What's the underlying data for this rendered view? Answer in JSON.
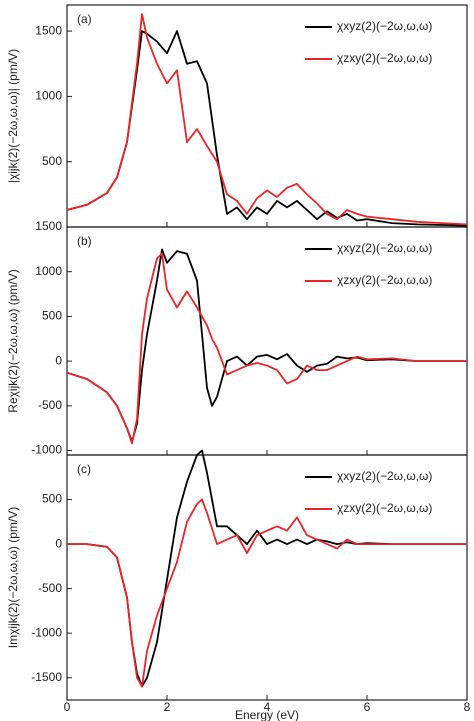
{
  "chart_data": [
    {
      "type": "line",
      "label": "(a)",
      "y_label": "|χijk(2)(−2ω,ω,ω)| (pm/V)",
      "x": [
        0,
        0.4,
        0.8,
        1.0,
        1.2,
        1.4,
        1.5,
        1.6,
        1.8,
        2.0,
        2.2,
        2.4,
        2.6,
        2.8,
        3.0,
        3.2,
        3.4,
        3.6,
        3.8,
        4.0,
        4.2,
        4.4,
        4.6,
        4.8,
        5.0,
        5.2,
        5.4,
        5.6,
        5.8,
        6.0,
        6.5,
        7.0,
        7.5,
        8.0
      ],
      "series": [
        {
          "name": "χxyz(2)(−2ω,ω,ω)",
          "color": "#000000",
          "values": [
            130,
            170,
            260,
            380,
            650,
            1200,
            1500,
            1480,
            1420,
            1330,
            1500,
            1250,
            1270,
            1100,
            550,
            100,
            150,
            60,
            150,
            100,
            200,
            150,
            200,
            130,
            60,
            120,
            70,
            100,
            50,
            60,
            30,
            20,
            15,
            10
          ]
        },
        {
          "name": "χzxy(2)(−2ω,ω,ω)",
          "color": "#e8262a",
          "values": [
            130,
            170,
            260,
            380,
            650,
            1250,
            1630,
            1450,
            1250,
            1100,
            1200,
            650,
            750,
            620,
            500,
            250,
            200,
            100,
            220,
            280,
            230,
            300,
            330,
            250,
            180,
            100,
            60,
            130,
            100,
            80,
            60,
            40,
            30,
            20
          ]
        }
      ],
      "xlim": [
        0,
        8
      ],
      "xticks": [
        0,
        2,
        4,
        6,
        8
      ],
      "ylim": [
        0,
        1700
      ],
      "yticks": [
        500,
        1000,
        1500
      ]
    },
    {
      "type": "line",
      "label": "(b)",
      "y_label": "Reχijk(2)(−2ω,ω,ω) (pm/V)",
      "x": [
        0,
        0.4,
        0.8,
        1.0,
        1.2,
        1.3,
        1.4,
        1.5,
        1.6,
        1.8,
        1.9,
        2.0,
        2.2,
        2.4,
        2.6,
        2.8,
        2.9,
        3.0,
        3.2,
        3.4,
        3.6,
        3.8,
        4.0,
        4.2,
        4.4,
        4.6,
        4.8,
        5.0,
        5.2,
        5.4,
        5.6,
        5.8,
        6.0,
        6.5,
        7.0,
        8.0
      ],
      "series": [
        {
          "name": "χxyz(2)(−2ω,ω,ω)",
          "color": "#000000",
          "values": [
            -130,
            -200,
            -350,
            -500,
            -750,
            -900,
            -700,
            -100,
            300,
            900,
            1250,
            1100,
            1230,
            1200,
            900,
            -300,
            -500,
            -400,
            0,
            50,
            -50,
            50,
            70,
            20,
            80,
            -50,
            -120,
            -50,
            -30,
            50,
            30,
            40,
            10,
            20,
            0,
            0
          ]
        },
        {
          "name": "χzxy(2)(−2ω,ω,ω)",
          "color": "#e8262a",
          "values": [
            -130,
            -200,
            -350,
            -500,
            -750,
            -920,
            -650,
            300,
            700,
            1150,
            1200,
            800,
            600,
            780,
            600,
            400,
            250,
            150,
            -150,
            -100,
            -50,
            -20,
            -50,
            -100,
            -250,
            -200,
            -50,
            -100,
            -100,
            -50,
            0,
            50,
            20,
            30,
            0,
            0
          ]
        }
      ],
      "xlim": [
        0,
        8
      ],
      "xticks": [
        0,
        2,
        4,
        6,
        8
      ],
      "ylim": [
        -1050,
        1500
      ],
      "yticks": [
        -1000,
        -500,
        0,
        500,
        1000,
        1500
      ]
    },
    {
      "type": "line",
      "label": "(c)",
      "y_label": "Imχijk(2)(−2ω,ω,ω) (pm/V)",
      "x_label": "Energy (eV)",
      "x": [
        0,
        0.4,
        0.8,
        1.0,
        1.2,
        1.3,
        1.4,
        1.5,
        1.6,
        1.8,
        2.0,
        2.2,
        2.4,
        2.6,
        2.7,
        2.8,
        3.0,
        3.2,
        3.4,
        3.6,
        3.8,
        4.0,
        4.2,
        4.4,
        4.6,
        4.8,
        5.0,
        5.2,
        5.4,
        5.6,
        5.8,
        6.0,
        6.5,
        7.0,
        8.0
      ],
      "series": [
        {
          "name": "χxyz(2)(−2ω,ω,ω)",
          "color": "#000000",
          "values": [
            0,
            0,
            -30,
            -150,
            -600,
            -1100,
            -1450,
            -1600,
            -1500,
            -1100,
            -400,
            300,
            700,
            1000,
            1050,
            800,
            200,
            200,
            100,
            0,
            150,
            0,
            50,
            0,
            50,
            0,
            50,
            30,
            0,
            20,
            0,
            10,
            0,
            0,
            0
          ]
        },
        {
          "name": "χzxy(2)(−2ω,ω,ω)",
          "color": "#e8262a",
          "values": [
            0,
            0,
            -30,
            -150,
            -600,
            -1100,
            -1500,
            -1600,
            -1200,
            -800,
            -500,
            -200,
            250,
            450,
            500,
            350,
            0,
            50,
            100,
            -100,
            100,
            150,
            200,
            150,
            300,
            100,
            50,
            0,
            -50,
            50,
            0,
            0,
            0,
            0,
            0
          ]
        }
      ],
      "xlim": [
        0,
        8
      ],
      "xticks": [
        0,
        2,
        4,
        6,
        8
      ],
      "ylim": [
        -1750,
        1000
      ],
      "yticks": [
        -1500,
        -1000,
        -500,
        0,
        500
      ]
    }
  ]
}
